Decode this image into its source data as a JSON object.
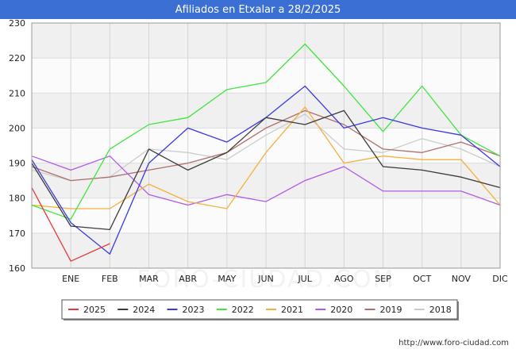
{
  "header": {
    "title": "Afiliados en Etxalar a 28/2/2025"
  },
  "footer": {
    "url": "http://www.foro-ciudad.com"
  },
  "chart_data": {
    "type": "line",
    "title": "Afiliados en Etxalar a 28/2/2025",
    "xlabel": "",
    "ylabel": "",
    "x": [
      "",
      "ENE",
      "FEB",
      "MAR",
      "ABR",
      "MAY",
      "JUN",
      "JUL",
      "AGO",
      "SEP",
      "OCT",
      "NOV",
      "DIC"
    ],
    "ylim": [
      160,
      230
    ],
    "yticks": [
      160,
      170,
      180,
      190,
      200,
      210,
      220,
      230
    ],
    "grid": true,
    "legend_position": "bottom",
    "watermark": "FORO-CIUDAD.COM",
    "series": [
      {
        "name": "2025",
        "color": "#e8393a",
        "values": [
          183,
          162,
          167,
          null,
          null,
          null,
          null,
          null,
          null,
          null,
          null,
          null,
          null
        ]
      },
      {
        "name": "2024",
        "color": "#3a3a3a",
        "values": [
          190,
          172,
          171,
          194,
          188,
          193,
          203,
          201,
          205,
          189,
          188,
          186,
          183
        ]
      },
      {
        "name": "2023",
        "color": "#3a3ae0",
        "values": [
          191,
          173,
          164,
          190,
          200,
          196,
          203,
          212,
          200,
          203,
          200,
          198,
          189
        ]
      },
      {
        "name": "2022",
        "color": "#3ee63e",
        "values": [
          178,
          174,
          194,
          201,
          203,
          211,
          213,
          224,
          212,
          199,
          212,
          198,
          192
        ]
      },
      {
        "name": "2021",
        "color": "#f5b03a",
        "values": [
          178,
          177,
          177,
          184,
          179,
          177,
          193,
          206,
          190,
          192,
          191,
          191,
          178
        ]
      },
      {
        "name": "2020",
        "color": "#b25ae6",
        "values": [
          192,
          188,
          192,
          181,
          178,
          181,
          179,
          185,
          189,
          182,
          182,
          182,
          178
        ]
      },
      {
        "name": "2019",
        "color": "#b06e6e",
        "values": [
          189,
          185,
          186,
          188,
          190,
          193,
          200,
          205,
          201,
          194,
          193,
          196,
          192
        ]
      },
      {
        "name": "2018",
        "color": "#cccccc",
        "values": [
          188,
          185,
          186,
          194,
          193,
          191,
          198,
          204,
          194,
          193,
          197,
          194,
          189
        ]
      }
    ]
  }
}
